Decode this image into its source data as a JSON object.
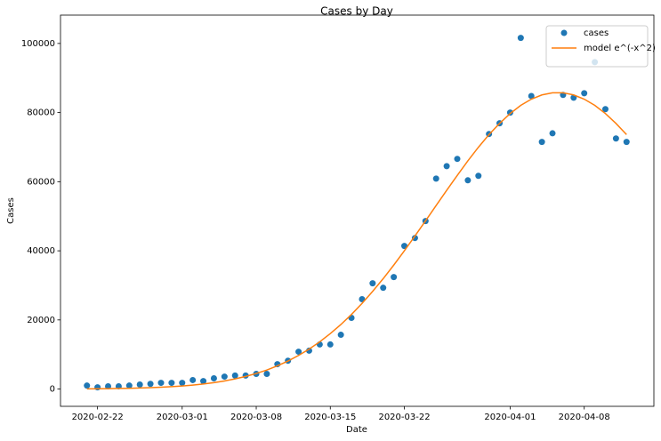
{
  "chart_data": {
    "type": "scatter",
    "title": "Cases by Day",
    "x_label": "Date",
    "y_label": "Cases",
    "x": [
      "2020-02-21",
      "2020-02-22",
      "2020-02-23",
      "2020-02-24",
      "2020-02-25",
      "2020-02-26",
      "2020-02-27",
      "2020-02-28",
      "2020-02-29",
      "2020-03-01",
      "2020-03-02",
      "2020-03-03",
      "2020-03-04",
      "2020-03-05",
      "2020-03-06",
      "2020-03-07",
      "2020-03-08",
      "2020-03-09",
      "2020-03-10",
      "2020-03-11",
      "2020-03-12",
      "2020-03-13",
      "2020-03-14",
      "2020-03-15",
      "2020-03-16",
      "2020-03-17",
      "2020-03-18",
      "2020-03-19",
      "2020-03-20",
      "2020-03-21",
      "2020-03-22",
      "2020-03-23",
      "2020-03-24",
      "2020-03-25",
      "2020-03-26",
      "2020-03-27",
      "2020-03-28",
      "2020-03-29",
      "2020-03-30",
      "2020-03-31",
      "2020-04-01",
      "2020-04-02",
      "2020-04-03",
      "2020-04-04",
      "2020-04-05",
      "2020-04-06",
      "2020-04-07",
      "2020-04-08",
      "2020-04-09",
      "2020-04-10",
      "2020-04-11",
      "2020-04-12"
    ],
    "series": [
      {
        "name": "cases",
        "type": "scatter",
        "color": "#1f77b4",
        "values": [
          1000,
          500,
          800,
          800,
          1000,
          1300,
          1500,
          1800,
          1800,
          1800,
          2600,
          2300,
          3100,
          3600,
          3900,
          3900,
          4400,
          4400,
          7200,
          8200,
          10800,
          11100,
          12900,
          12900,
          15700,
          20600,
          26000,
          30600,
          29300,
          32400,
          41400,
          43700,
          48600,
          60900,
          64500,
          66600,
          60400,
          61700,
          73800,
          76900,
          80000,
          101600,
          84800,
          71500,
          74000,
          85100,
          84300,
          85600,
          94600,
          81000,
          72500,
          71500
        ]
      },
      {
        "name": "model e^(-x^2)",
        "type": "line",
        "color": "#ff7f0e",
        "values": [
          64,
          89,
          122,
          166,
          223,
          298,
          396,
          522,
          681,
          884,
          1141,
          1461,
          1855,
          2342,
          2935,
          3647,
          4504,
          5508,
          6710,
          8100,
          9721,
          11566,
          13668,
          16036,
          18670,
          21587,
          24779,
          28254,
          31943,
          35873,
          40009,
          44298,
          48666,
          53093,
          57512,
          61810,
          66032,
          69970,
          73625,
          76860,
          79717,
          82076,
          83878,
          85105,
          85723,
          85723,
          85105,
          83878,
          82076,
          79717,
          76860,
          73625
        ]
      }
    ],
    "xlim": [
      "2020-02-18T12:00Z",
      "2020-04-14T14:00Z"
    ],
    "xticks": [
      "2020-02-22",
      "2020-03-01",
      "2020-03-08",
      "2020-03-15",
      "2020-03-22",
      "2020-04-01",
      "2020-04-08"
    ],
    "ylim": [
      -5000,
      108200
    ],
    "yticks": [
      0,
      20000,
      40000,
      60000,
      80000,
      100000
    ],
    "grid": false,
    "legend": "upper right"
  }
}
